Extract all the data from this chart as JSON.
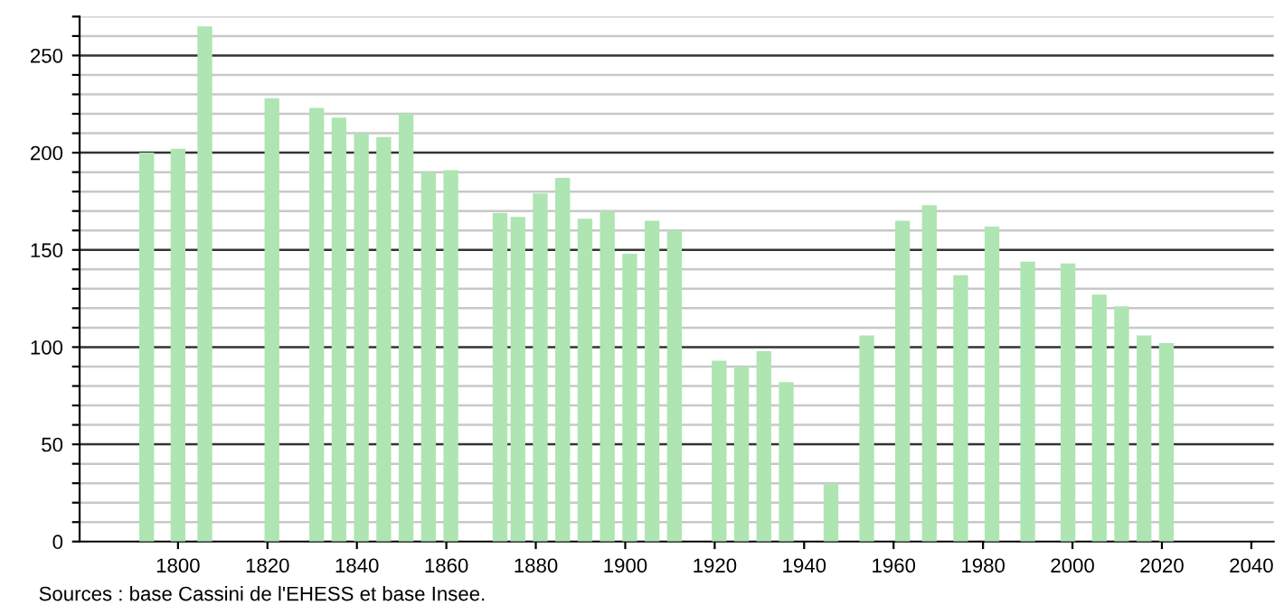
{
  "chart_data": {
    "type": "bar",
    "x": [
      1793,
      1800,
      1806,
      1821,
      1831,
      1836,
      1841,
      1846,
      1851,
      1856,
      1861,
      1872,
      1876,
      1881,
      1886,
      1891,
      1896,
      1901,
      1906,
      1911,
      1921,
      1926,
      1931,
      1936,
      1946,
      1954,
      1962,
      1968,
      1975,
      1982,
      1990,
      1999,
      2006,
      2011,
      2016,
      2021
    ],
    "values": [
      200,
      202,
      265,
      228,
      223,
      218,
      210,
      208,
      220,
      190,
      191,
      169,
      167,
      179,
      187,
      166,
      170,
      148,
      165,
      160,
      93,
      90,
      98,
      82,
      30,
      106,
      165,
      173,
      137,
      162,
      144,
      143,
      127,
      121,
      106,
      102
    ],
    "color": "#aee5b2",
    "xlim": [
      1778,
      2045
    ],
    "xticks": [
      1800,
      1820,
      1840,
      1860,
      1880,
      1900,
      1920,
      1940,
      1960,
      1980,
      2000,
      2020,
      2040
    ],
    "ylim": [
      0,
      270
    ],
    "yticks": [
      0,
      {
        "value": 10,
        "label": null
      },
      {
        "value": 20,
        "label": null
      },
      {
        "value": 30,
        "label": null
      },
      {
        "value": 40,
        "label": null
      },
      50,
      {
        "value": 60,
        "label": null
      },
      {
        "value": 70,
        "label": null
      },
      {
        "value": 80,
        "label": null
      },
      {
        "value": 90,
        "label": null
      },
      100,
      {
        "value": 110,
        "label": null
      },
      {
        "value": 120,
        "label": null
      },
      {
        "value": 130,
        "label": null
      },
      {
        "value": 140,
        "label": null
      },
      150,
      {
        "value": 160,
        "label": null
      },
      {
        "value": 170,
        "label": null
      },
      {
        "value": 180,
        "label": null
      },
      {
        "value": 190,
        "label": null
      },
      200,
      {
        "value": 210,
        "label": null
      },
      {
        "value": 220,
        "label": null
      },
      {
        "value": 230,
        "label": null
      },
      {
        "value": 240,
        "label": null
      },
      250,
      {
        "value": 260,
        "label": null
      },
      {
        "value": 270,
        "label": null
      }
    ],
    "grid": "y",
    "annotations": [
      "Sources : base Cassini de l'EHESS et base Insee."
    ]
  }
}
